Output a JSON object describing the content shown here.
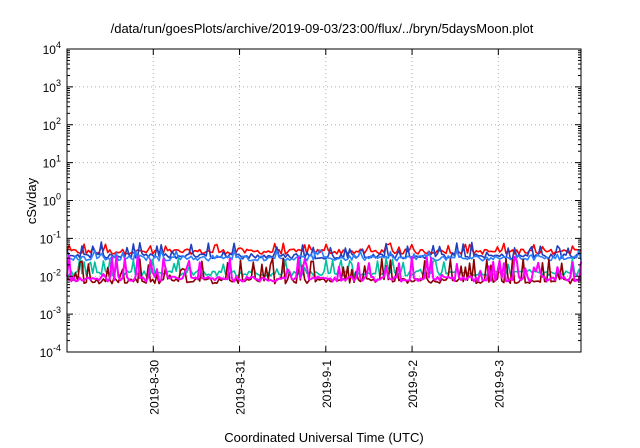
{
  "chart_data": {
    "type": "line",
    "title": "/data/run/goesPlots/archive/2019-09-03/23:00/flux/../bryn/5daysMoon.plot",
    "xlabel": "Coordinated Universal Time (UTC)",
    "ylabel": "cSv/day",
    "y_scale": "log",
    "ylim": [
      0.0001,
      10000
    ],
    "y_ticks": [
      {
        "base": "10",
        "exp": "4",
        "value": 10000
      },
      {
        "base": "10",
        "exp": "3",
        "value": 1000
      },
      {
        "base": "10",
        "exp": "2",
        "value": 100
      },
      {
        "base": "10",
        "exp": "1",
        "value": 10
      },
      {
        "base": "10",
        "exp": "0",
        "value": 1
      },
      {
        "base": "10",
        "exp": "-1",
        "value": 0.1
      },
      {
        "base": "10",
        "exp": "-2",
        "value": 0.01
      },
      {
        "base": "10",
        "exp": "-3",
        "value": 0.001
      },
      {
        "base": "10",
        "exp": "-4",
        "value": 0.0001
      }
    ],
    "xlim": [
      "2019-08-29T00:00",
      "2019-09-03T23:00"
    ],
    "x_ticks": [
      {
        "label": "2019-8-30",
        "date": "2019-08-30"
      },
      {
        "label": "2019-8-31",
        "date": "2019-08-31"
      },
      {
        "label": "2019-9-1",
        "date": "2019-09-01"
      },
      {
        "label": "2019-9-2",
        "date": "2019-09-02"
      },
      {
        "label": "2019-9-3",
        "date": "2019-09-03"
      }
    ],
    "grid": true,
    "legend": "none",
    "series": [
      {
        "color": "#ff0000",
        "baseline": 0.045,
        "spike": 0.075,
        "pattern": "spiky"
      },
      {
        "color": "#1f3fbf",
        "baseline": 0.034,
        "spike": 0.08,
        "pattern": "spiky"
      },
      {
        "color": "#2a7fff",
        "baseline": 0.03,
        "spike": 0.05,
        "pattern": "spiky"
      },
      {
        "color": "#00c0a0",
        "baseline": 0.012,
        "spike": 0.03,
        "pattern": "dips"
      },
      {
        "color": "#8b0000",
        "baseline": 0.0075,
        "spike": 0.03,
        "pattern": "dips"
      },
      {
        "color": "#ff00ff",
        "baseline": 0.0085,
        "spike": 0.035,
        "pattern": "dips"
      }
    ]
  }
}
